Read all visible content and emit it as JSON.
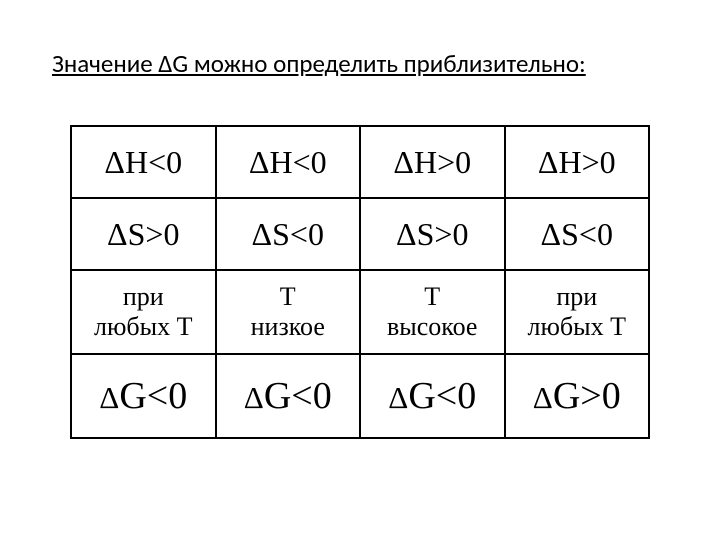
{
  "title": "Значение  ΔG можно определить приблизительно:",
  "table": {
    "columns": 4,
    "border_color": "#000000",
    "background_color": "#ffffff",
    "text_color": "#000000",
    "rows": [
      {
        "kind": "hs",
        "cells": [
          "ΔH<0",
          "ΔH<0",
          "ΔH>0",
          "ΔH>0"
        ]
      },
      {
        "kind": "hs",
        "cells": [
          "ΔS>0",
          "ΔS<0",
          "ΔS>0",
          "ΔS<0"
        ]
      },
      {
        "kind": "cond",
        "cells": [
          "при любых Т",
          "Т низкое",
          "Т высокое",
          "при любых Т"
        ]
      },
      {
        "kind": "g",
        "cells": [
          "ΔG<0",
          "ΔG<0",
          "ΔG<0",
          "ΔG>0"
        ]
      }
    ]
  }
}
